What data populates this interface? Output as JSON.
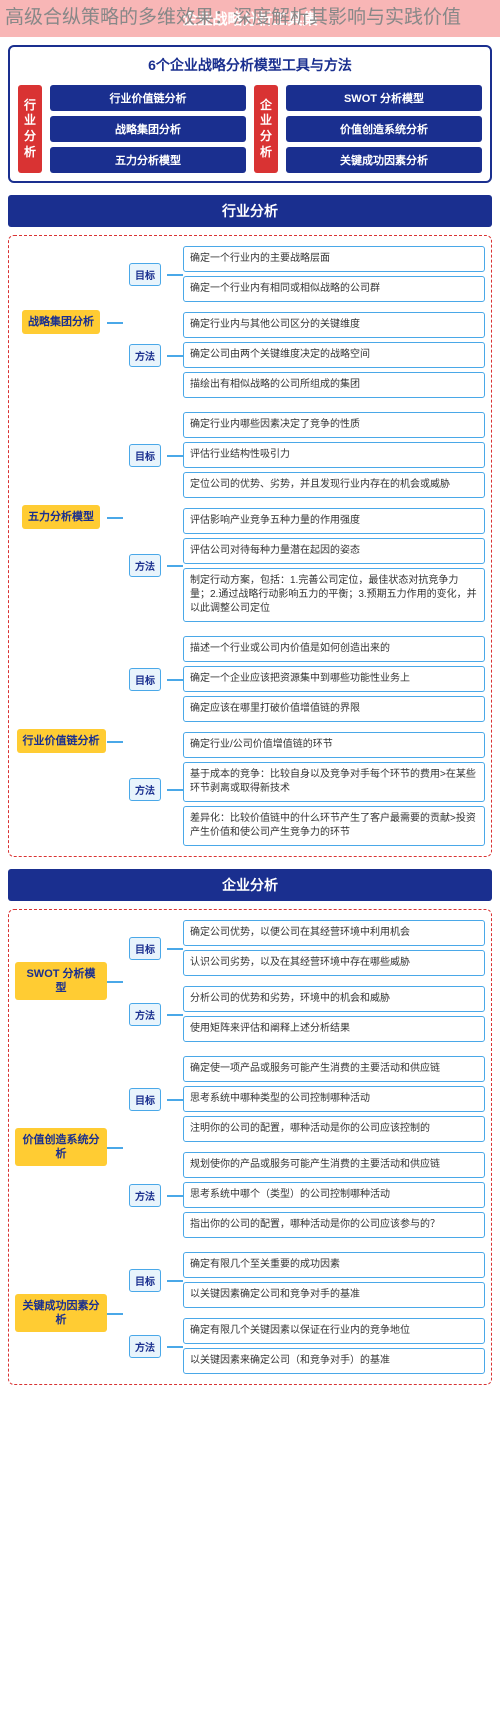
{
  "overlay_text": "高级合纵策略的多维效果：深度解析其影响与实践价值",
  "header": "企业战略分析工具集",
  "topbox": {
    "title": "6个企业战略分析模型工具与方法",
    "left_label": "行业分析",
    "right_label": "企业分析",
    "left_buttons": [
      "行业价值链分析",
      "战略集团分析",
      "五力分析模型"
    ],
    "right_buttons": [
      "SWOT 分析模型",
      "价值创造系统分析",
      "关键成功因素分析"
    ]
  },
  "colors": {
    "navy": "#1a2f8f",
    "red": "#d93333",
    "yellow": "#ffcc33",
    "blue": "#4aa8e8",
    "lightblue": "#e8f4fc",
    "pink": "#f8b6b6"
  },
  "sections": [
    {
      "title": "行业分析",
      "models": [
        {
          "name": "战略集团分析",
          "groups": [
            {
              "label": "目标",
              "items": [
                "确定一个行业内的主要战略层面",
                "确定一个行业内有相同或相似战略的公司群"
              ]
            },
            {
              "label": "方法",
              "items": [
                "确定行业内与其他公司区分的关键维度",
                "确定公司由两个关键维度决定的战略空间",
                "描绘出有相似战略的公司所组成的集团"
              ]
            }
          ]
        },
        {
          "name": "五力分析模型",
          "groups": [
            {
              "label": "目标",
              "items": [
                "确定行业内哪些因素决定了竞争的性质",
                "评估行业结构性吸引力",
                "定位公司的优势、劣势，并且发现行业内存在的机会或威胁"
              ]
            },
            {
              "label": "方法",
              "items": [
                "评估影响产业竞争五种力量的作用强度",
                "评估公司对待每种力量潜在起因的姿态",
                "制定行动方案，包括：1.完善公司定位，最佳状态对抗竞争力量；2.通过战略行动影响五力的平衡；3.预期五力作用的变化，并以此调整公司定位"
              ]
            }
          ]
        },
        {
          "name": "行业价值链分析",
          "groups": [
            {
              "label": "目标",
              "items": [
                "描述一个行业或公司内价值是如何创造出来的",
                "确定一个企业应该把资源集中到哪些功能性业务上",
                "确定应该在哪里打破价值增值链的界限"
              ]
            },
            {
              "label": "方法",
              "items": [
                "确定行业/公司价值增值链的环节",
                "基于成本的竞争：比较自身以及竞争对手每个环节的费用>在某些环节剥离或取得新技术",
                "差异化：比较价值链中的什么环节产生了客户最需要的贡献>投资产生价值和使公司产生竞争力的环节"
              ]
            }
          ]
        }
      ]
    },
    {
      "title": "企业分析",
      "models": [
        {
          "name": "SWOT 分析模型",
          "groups": [
            {
              "label": "目标",
              "items": [
                "确定公司优势，以便公司在其经营环境中利用机会",
                "认识公司劣势，以及在其经营环境中存在哪些威胁"
              ]
            },
            {
              "label": "方法",
              "items": [
                "分析公司的优势和劣势，环境中的机会和威胁",
                "使用矩阵来评估和阐释上述分析结果"
              ]
            }
          ]
        },
        {
          "name": "价值创造系统分析",
          "groups": [
            {
              "label": "目标",
              "items": [
                "确定使一项产品或服务可能产生消费的主要活动和供应链",
                "思考系统中哪种类型的公司控制哪种活动",
                "注明你的公司的配置，哪种活动是你的公司应该控制的"
              ]
            },
            {
              "label": "方法",
              "items": [
                "规划使你的产品或服务可能产生消费的主要活动和供应链",
                "思考系统中哪个（类型）的公司控制哪种活动",
                "指出你的公司的配置，哪种活动是你的公司应该参与的？"
              ]
            }
          ]
        },
        {
          "name": "关键成功因素分析",
          "groups": [
            {
              "label": "目标",
              "items": [
                "确定有限几个至关重要的成功因素",
                "以关键因素确定公司和竞争对手的基准"
              ]
            },
            {
              "label": "方法",
              "items": [
                "确定有限几个关键因素以保证在行业内的竞争地位",
                "以关键因素来确定公司（和竞争对手）的基准"
              ]
            }
          ]
        }
      ]
    }
  ]
}
